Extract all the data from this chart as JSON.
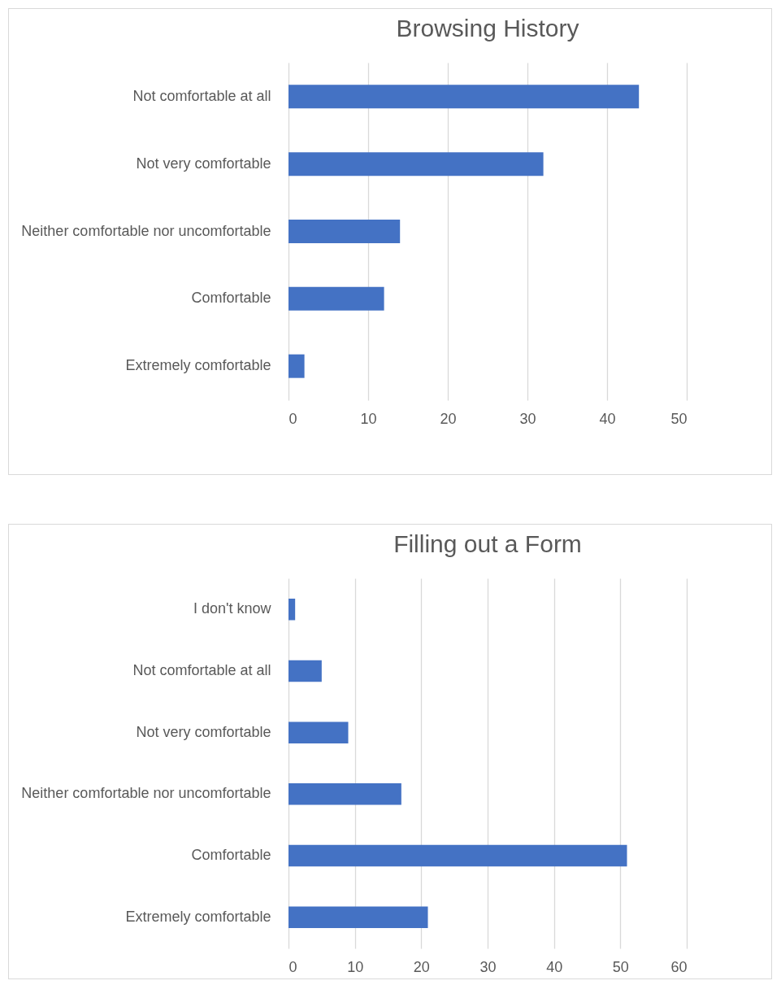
{
  "chart_data": [
    {
      "type": "bar",
      "orientation": "horizontal",
      "title": "Browsing History",
      "categories": [
        "Not comfortable at all",
        "Not very comfortable",
        "Neither comfortable nor uncomfortable",
        "Comfortable",
        "Extremely comfortable"
      ],
      "values": [
        44,
        32,
        14,
        12,
        2
      ],
      "color": "#4472c4",
      "xlim": [
        0,
        50
      ],
      "xticks": [
        0,
        10,
        20,
        30,
        40,
        50
      ],
      "grid": "x"
    },
    {
      "type": "bar",
      "orientation": "horizontal",
      "title": "Filling out a Form",
      "categories": [
        "I don't know",
        "Not comfortable at all",
        "Not very comfortable",
        "Neither comfortable nor uncomfortable",
        "Comfortable",
        "Extremely comfortable"
      ],
      "values": [
        1,
        5,
        9,
        17,
        51,
        21
      ],
      "color": "#4472c4",
      "xlim": [
        0,
        60
      ],
      "xticks": [
        0,
        10,
        20,
        30,
        40,
        50,
        60
      ],
      "grid": "x"
    }
  ]
}
